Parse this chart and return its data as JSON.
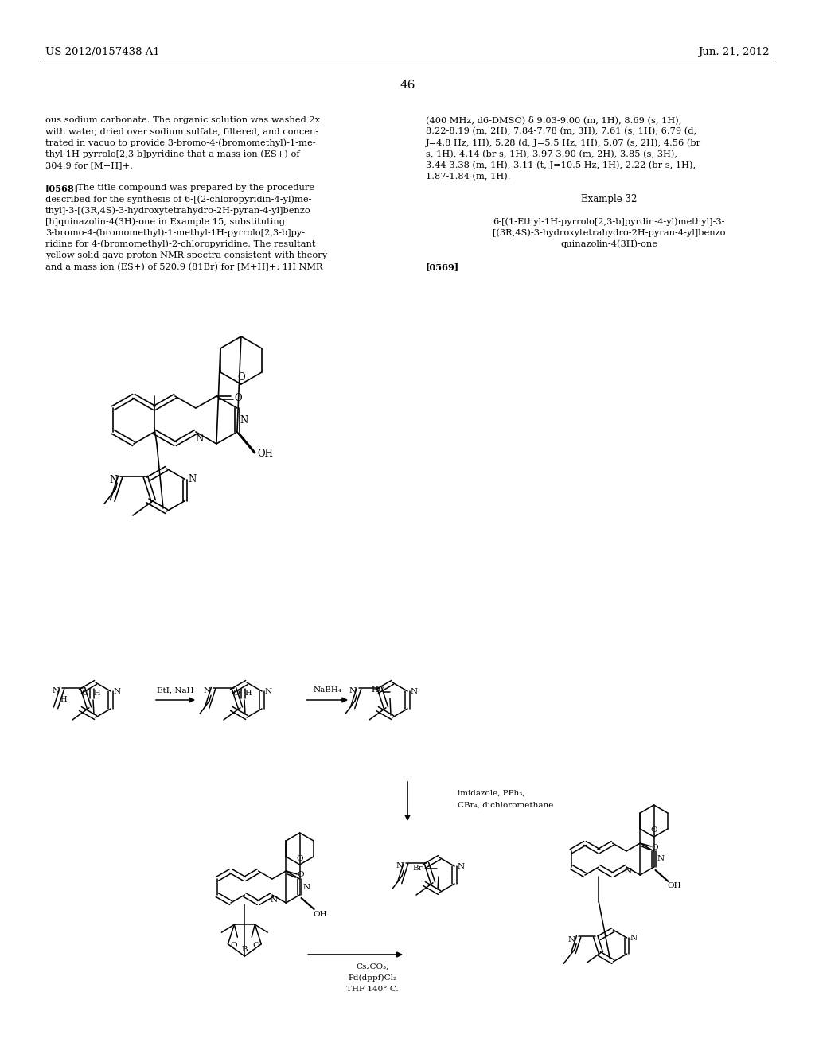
{
  "page_header_left": "US 2012/0157438 A1",
  "page_header_right": "Jun. 21, 2012",
  "page_number": "46",
  "left_col": [
    "ous sodium carbonate. The organic solution was washed 2x",
    "with water, dried over sodium sulfate, filtered, and concen-",
    "trated in vacuo to provide 3-bromo-4-(bromomethyl)-1-me-",
    "thyl-1H-pyrrolo[2,3-b]pyridine that a mass ion (ES+) of",
    "304.9 for [M+H]+.",
    "",
    "[0568]   The title compound was prepared by the procedure",
    "described for the synthesis of 6-[(2-chloropyridin-4-yl)me-",
    "thyl]-3-[(3R,4S)-3-hydroxytetrahydro-2H-pyran-4-yl]benzo",
    "[h]quinazolin-4(3H)-one in Example 15, substituting",
    "3-bromo-4-(bromomethyl)-1-methyl-1H-pyrrolo[2,3-b]py-",
    "ridine for 4-(bromomethyl)-2-chloropyridine. The resultant",
    "yellow solid gave proton NMR spectra consistent with theory",
    "and a mass ion (ES+) of 520.9 (81Br) for [M+H]+: 1H NMR"
  ],
  "right_col": [
    "(400 MHz, d6-DMSO) δ 9.03-9.00 (m, 1H), 8.69 (s, 1H),",
    "8.22-8.19 (m, 2H), 7.84-7.78 (m, 3H), 7.61 (s, 1H), 6.79 (d,",
    "J=4.8 Hz, 1H), 5.28 (d, J=5.5 Hz, 1H), 5.07 (s, 2H), 4.56 (br",
    "s, 1H), 4.14 (br s, 1H), 3.97-3.90 (m, 2H), 3.85 (s, 3H),",
    "3.44-3.38 (m, 1H), 3.11 (t, J=10.5 Hz, 1H), 2.22 (br s, 1H),",
    "1.87-1.84 (m, 1H).",
    "",
    "Example 32",
    "",
    "6-[(1-Ethyl-1H-pyrrolo[2,3-b]pyrdin-4-yl)methyl]-3-",
    "[(3R,4S)-3-hydroxytetrahydro-2H-pyran-4-yl]benzo",
    "quinazolin-4(3H)-one",
    "",
    "[0569]"
  ],
  "bg": "#ffffff"
}
